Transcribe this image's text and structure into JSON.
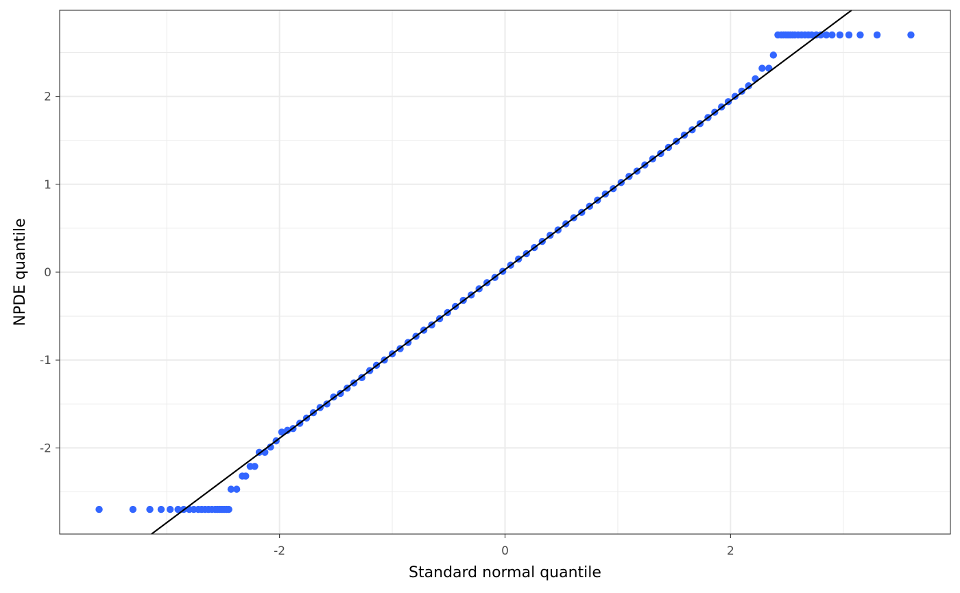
{
  "chart_data": {
    "type": "scatter",
    "xlabel": "Standard normal quantile",
    "ylabel": "NPDE quantile",
    "xlim": [
      -3.95,
      3.95
    ],
    "ylim": [
      -2.98,
      2.98
    ],
    "x_ticks": [
      -2,
      0,
      2
    ],
    "x_tick_labels": [
      "-2",
      "0",
      "2"
    ],
    "y_ticks": [
      -2,
      -1,
      0,
      1,
      2
    ],
    "y_tick_labels": [
      "-2",
      "-1",
      "0",
      "1",
      "2"
    ],
    "grid": true,
    "legend": "none",
    "colors": {
      "points": "#3366FF",
      "line": "#000000",
      "grid": "#EBEBEB",
      "border": "#333333"
    },
    "reference_line": {
      "intercept": 0.03,
      "slope": 0.96
    },
    "series": [
      {
        "x": [
          -3.6,
          -3.3,
          -3.15,
          -3.05,
          -2.97,
          -2.9,
          -2.85,
          -2.8,
          -2.76,
          -2.72,
          -2.69,
          -2.66,
          -2.63,
          -2.6,
          -2.57,
          -2.55,
          -2.53,
          -2.51,
          -2.49,
          -2.47,
          -2.45,
          -2.43,
          -2.38,
          -2.33,
          -2.3,
          -2.26,
          -2.22,
          -2.18,
          -2.13,
          -2.08,
          -2.03,
          -1.98,
          -1.93,
          -1.88,
          -1.82,
          -1.76,
          -1.7,
          -1.64,
          -1.58,
          -1.52,
          -1.46,
          -1.4,
          -1.34,
          -1.27,
          -1.2,
          -1.14,
          -1.07,
          -1.0,
          -0.93,
          -0.86,
          -0.79,
          -0.72,
          -0.65,
          -0.58,
          -0.51,
          -0.44,
          -0.37,
          -0.3,
          -0.23,
          -0.16,
          -0.09,
          -0.02,
          0.05,
          0.12,
          0.19,
          0.26,
          0.33,
          0.4,
          0.47,
          0.54,
          0.61,
          0.68,
          0.75,
          0.82,
          0.89,
          0.96,
          1.03,
          1.1,
          1.17,
          1.24,
          1.31,
          1.38,
          1.45,
          1.52,
          1.59,
          1.66,
          1.73,
          1.8,
          1.86,
          1.92,
          1.98,
          2.04,
          2.1,
          2.16,
          2.22,
          2.28,
          2.34,
          2.38,
          2.42,
          2.45,
          2.47,
          2.49,
          2.51,
          2.53,
          2.55,
          2.57,
          2.6,
          2.63,
          2.66,
          2.69,
          2.72,
          2.76,
          2.8,
          2.85,
          2.9,
          2.97,
          3.05,
          3.15,
          3.3,
          3.6
        ],
        "y": [
          -2.7,
          -2.7,
          -2.7,
          -2.7,
          -2.7,
          -2.7,
          -2.7,
          -2.7,
          -2.7,
          -2.7,
          -2.7,
          -2.7,
          -2.7,
          -2.7,
          -2.7,
          -2.7,
          -2.7,
          -2.7,
          -2.7,
          -2.7,
          -2.7,
          -2.47,
          -2.47,
          -2.32,
          -2.32,
          -2.21,
          -2.21,
          -2.05,
          -2.05,
          -1.99,
          -1.92,
          -1.82,
          -1.8,
          -1.78,
          -1.72,
          -1.66,
          -1.6,
          -1.54,
          -1.5,
          -1.42,
          -1.38,
          -1.32,
          -1.26,
          -1.2,
          -1.12,
          -1.06,
          -1.0,
          -0.93,
          -0.87,
          -0.8,
          -0.73,
          -0.66,
          -0.6,
          -0.53,
          -0.46,
          -0.39,
          -0.32,
          -0.26,
          -0.19,
          -0.12,
          -0.06,
          0.01,
          0.08,
          0.15,
          0.21,
          0.28,
          0.35,
          0.42,
          0.48,
          0.55,
          0.62,
          0.68,
          0.75,
          0.82,
          0.89,
          0.95,
          1.02,
          1.09,
          1.15,
          1.22,
          1.29,
          1.35,
          1.42,
          1.49,
          1.56,
          1.62,
          1.69,
          1.76,
          1.82,
          1.88,
          1.94,
          2.0,
          2.06,
          2.12,
          2.2,
          2.32,
          2.32,
          2.47,
          2.7,
          2.7,
          2.7,
          2.7,
          2.7,
          2.7,
          2.7,
          2.7,
          2.7,
          2.7,
          2.7,
          2.7,
          2.7,
          2.7,
          2.7,
          2.7,
          2.7,
          2.7,
          2.7,
          2.7,
          2.7,
          2.7
        ]
      }
    ]
  }
}
